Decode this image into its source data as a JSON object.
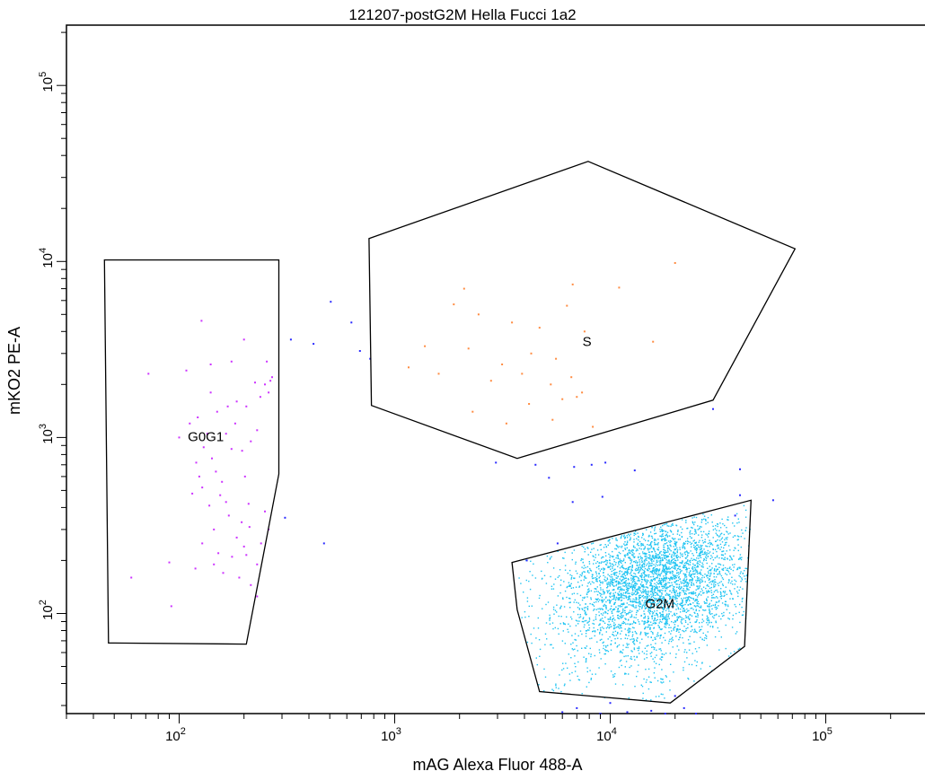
{
  "chart_data": {
    "type": "scatter",
    "title": "121207-postG2M Hella Fucci 1a2",
    "xlabel": "mAG Alexa Fluor 488-A",
    "ylabel": "mKO2 PE-A",
    "x_scale": "log",
    "y_scale": "log",
    "xlim": [
      30,
      300000
    ],
    "ylim": [
      27,
      220000
    ],
    "grid": false,
    "x_ticks": [
      {
        "value": 100,
        "base": "10",
        "exp": "2"
      },
      {
        "value": 1000,
        "base": "10",
        "exp": "3"
      },
      {
        "value": 10000,
        "base": "10",
        "exp": "4"
      },
      {
        "value": 100000,
        "base": "10",
        "exp": "5"
      }
    ],
    "y_ticks": [
      {
        "value": 100,
        "base": "10",
        "exp": "2"
      },
      {
        "value": 1000,
        "base": "10",
        "exp": "3"
      },
      {
        "value": 10000,
        "base": "10",
        "exp": "4"
      },
      {
        "value": 100000,
        "base": "10",
        "exp": "5"
      }
    ],
    "gates": [
      {
        "name": "G0G1",
        "label_at": [
          133,
          950
        ],
        "vertices": [
          [
            45,
            10200
          ],
          [
            290,
            10200
          ],
          [
            290,
            620
          ],
          [
            205,
            67
          ],
          [
            47,
            68
          ]
        ]
      },
      {
        "name": "S",
        "label_at": [
          7800,
          3300
        ],
        "vertices": [
          [
            760,
            13500
          ],
          [
            7900,
            37000
          ],
          [
            72000,
            11800
          ],
          [
            30000,
            1630
          ],
          [
            3700,
            760
          ],
          [
            780,
            1520
          ]
        ]
      },
      {
        "name": "G2M",
        "label_at": [
          17000,
          107
        ],
        "vertices": [
          [
            3500,
            195
          ],
          [
            45000,
            440
          ],
          [
            42000,
            65
          ],
          [
            19000,
            31
          ],
          [
            4700,
            36
          ],
          [
            3700,
            105
          ]
        ]
      }
    ],
    "series": [
      {
        "gate": "G0G1",
        "color": "#cc33ff",
        "points": [
          [
            127,
            4600
          ],
          [
            108,
            2400
          ],
          [
            72,
            2300
          ],
          [
            140,
            2600
          ],
          [
            175,
            2700
          ],
          [
            200,
            3600
          ],
          [
            255,
            2700
          ],
          [
            265,
            2100
          ],
          [
            250,
            2000
          ],
          [
            238,
            1700
          ],
          [
            205,
            1500
          ],
          [
            150,
            1400
          ],
          [
            182,
            1200
          ],
          [
            165,
            1050
          ],
          [
            215,
            950
          ],
          [
            130,
            880
          ],
          [
            142,
            760
          ],
          [
            196,
            840
          ],
          [
            120,
            720
          ],
          [
            128,
            520
          ],
          [
            158,
            560
          ],
          [
            148,
            640
          ],
          [
            115,
            480
          ],
          [
            138,
            410
          ],
          [
            170,
            360
          ],
          [
            195,
            330
          ],
          [
            250,
            380
          ],
          [
            212,
            310
          ],
          [
            185,
            270
          ],
          [
            128,
            250
          ],
          [
            152,
            220
          ],
          [
            176,
            210
          ],
          [
            205,
            215
          ],
          [
            240,
            250
          ],
          [
            145,
            190
          ],
          [
            119,
            180
          ],
          [
            190,
            160
          ],
          [
            215,
            145
          ],
          [
            230,
            125
          ],
          [
            160,
            170
          ],
          [
            60,
            160
          ],
          [
            90,
            195
          ],
          [
            92,
            110
          ],
          [
            122,
            1300
          ],
          [
            100,
            1000
          ],
          [
            260,
            1800
          ],
          [
            230,
            1100
          ],
          [
            185,
            1600
          ],
          [
            135,
            1050
          ],
          [
            175,
            860
          ],
          [
            155,
            470
          ],
          [
            210,
            420
          ],
          [
            260,
            300
          ],
          [
            230,
            190
          ],
          [
            112,
            1200
          ],
          [
            168,
            1500
          ],
          [
            145,
            300
          ],
          [
            200,
            240
          ],
          [
            270,
            2200
          ],
          [
            225,
            2050
          ],
          [
            165,
            430
          ],
          [
            124,
            600
          ],
          [
            202,
            600
          ],
          [
            140,
            1800
          ]
        ]
      },
      {
        "gate": "S",
        "color": "#ff8c42",
        "points": [
          [
            20000,
            9800
          ],
          [
            11000,
            7100
          ],
          [
            6700,
            7400
          ],
          [
            2100,
            7000
          ],
          [
            1880,
            5700
          ],
          [
            2450,
            5000
          ],
          [
            3500,
            4500
          ],
          [
            4700,
            4200
          ],
          [
            6300,
            5600
          ],
          [
            7600,
            4000
          ],
          [
            15800,
            3500
          ],
          [
            1380,
            3300
          ],
          [
            2200,
            3200
          ],
          [
            3150,
            2600
          ],
          [
            4300,
            3000
          ],
          [
            5600,
            2800
          ],
          [
            2800,
            2100
          ],
          [
            1600,
            2300
          ],
          [
            3900,
            2300
          ],
          [
            5300,
            2000
          ],
          [
            6600,
            2200
          ],
          [
            7400,
            1800
          ],
          [
            6000,
            1650
          ],
          [
            4200,
            1550
          ],
          [
            2300,
            1400
          ],
          [
            1160,
            2500
          ],
          [
            8300,
            1150
          ],
          [
            5400,
            1260
          ],
          [
            7000,
            1700
          ],
          [
            3300,
            1200
          ]
        ]
      },
      {
        "gate": "outside",
        "color": "#2a2aff",
        "points": [
          [
            505,
            5900
          ],
          [
            330,
            3600
          ],
          [
            630,
            4500
          ],
          [
            420,
            3400
          ],
          [
            690,
            3100
          ],
          [
            770,
            2800
          ],
          [
            2950,
            720
          ],
          [
            4500,
            700
          ],
          [
            5200,
            590
          ],
          [
            6800,
            680
          ],
          [
            8200,
            700
          ],
          [
            9500,
            720
          ],
          [
            13000,
            650
          ],
          [
            30000,
            1450
          ],
          [
            40000,
            660
          ],
          [
            57000,
            440
          ],
          [
            40000,
            470
          ],
          [
            38000,
            360
          ],
          [
            9200,
            460
          ],
          [
            6700,
            430
          ],
          [
            5700,
            250
          ],
          [
            4100,
            200
          ],
          [
            470,
            250
          ],
          [
            310,
            350
          ],
          [
            6000,
            27.5
          ],
          [
            9000,
            27
          ],
          [
            12000,
            27.5
          ],
          [
            15500,
            28
          ],
          [
            18000,
            27
          ],
          [
            22000,
            29
          ],
          [
            25000,
            27
          ],
          [
            10000,
            31
          ],
          [
            7000,
            29
          ],
          [
            20000,
            34
          ]
        ]
      }
    ],
    "g2m_cluster": {
      "color": "#1fc4f2",
      "count": 3200,
      "center": [
        16000,
        150
      ],
      "x_range": [
        3700,
        45000
      ],
      "y_range": [
        28,
        440
      ]
    }
  }
}
